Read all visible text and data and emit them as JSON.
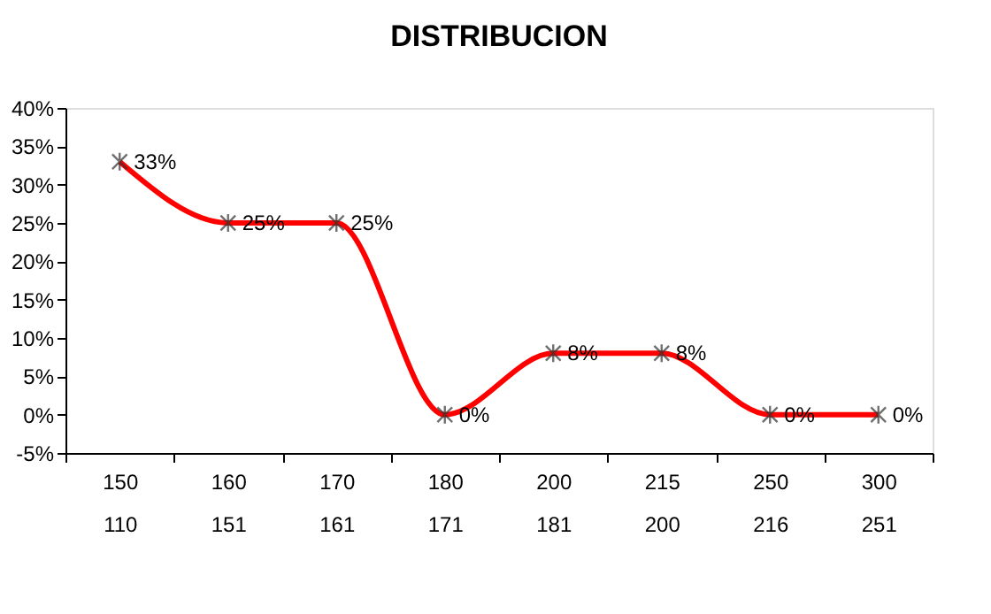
{
  "chart_data": {
    "type": "line",
    "title": "DISTRIBUCION",
    "categories": [
      "150\n110",
      "160\n151",
      "170\n161",
      "180\n171",
      "200\n181",
      "215\n200",
      "250\n216",
      "300\n251"
    ],
    "series": [
      {
        "color": "#ff0000",
        "values": [
          33,
          25,
          25,
          0,
          8,
          8,
          0,
          0
        ],
        "value_labels": [
          "33%",
          "25%",
          "25%",
          "0%",
          "8%",
          "8%",
          "0%",
          "0%"
        ]
      }
    ],
    "ylim": [
      -5,
      40
    ],
    "yticks": [
      {
        "value": -5,
        "label": "-5%"
      },
      {
        "value": 0,
        "label": "0%"
      },
      {
        "value": 5,
        "label": "5%"
      },
      {
        "value": 10,
        "label": "10%"
      },
      {
        "value": 15,
        "label": "15%"
      },
      {
        "value": 20,
        "label": "20%"
      },
      {
        "value": 25,
        "label": "25%"
      },
      {
        "value": 30,
        "label": "30%"
      },
      {
        "value": 35,
        "label": "35%"
      },
      {
        "value": 40,
        "label": "40%"
      }
    ],
    "grid": false,
    "marker": "cross",
    "line_style": "solid"
  }
}
